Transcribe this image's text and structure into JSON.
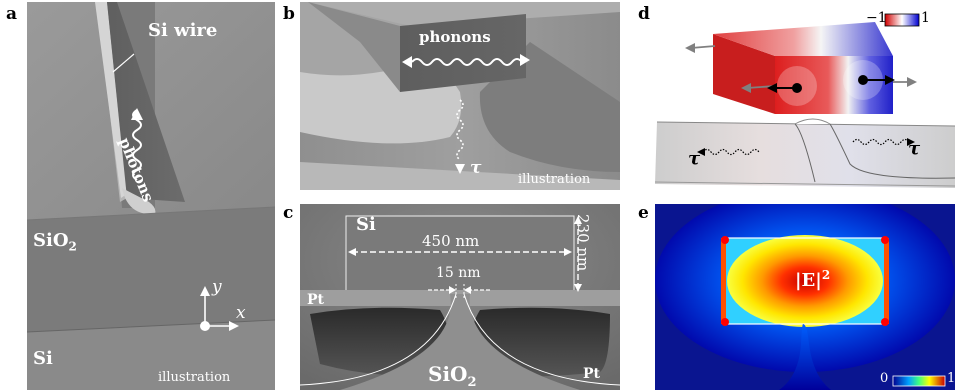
{
  "panels": {
    "a": {
      "letter": "a",
      "top_label": "Si wire",
      "wave_label": "photons",
      "middle_layer": "SiO",
      "middle_layer_sub": "2",
      "bottom_layer": "Si",
      "axis_y": "y",
      "axis_x": "x",
      "caption": "illustration"
    },
    "b": {
      "letter": "b",
      "box_label": "phonons",
      "tau": "τ",
      "caption": "illustration"
    },
    "c": {
      "letter": "c",
      "si_label": "Si",
      "width_label": "450 nm",
      "height_label": "230 nm",
      "gap_label": "15 nm",
      "pt_left": "Pt",
      "pt_right": "Pt",
      "substrate": "SiO",
      "substrate_sub": "2"
    },
    "d": {
      "letter": "d",
      "scale_min": "−1",
      "scale_max": "1",
      "tau_left": "τ",
      "tau_right": "τ"
    },
    "e": {
      "letter": "e",
      "field_label": "|E|",
      "field_sup": "2",
      "scale_min": "0",
      "scale_max": "1"
    }
  }
}
